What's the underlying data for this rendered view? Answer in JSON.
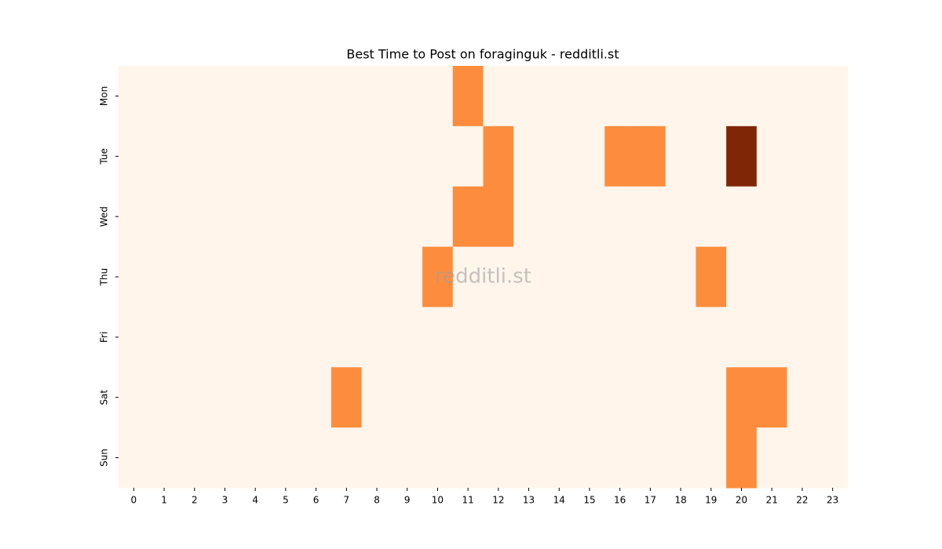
{
  "chart_data": {
    "type": "heatmap",
    "title": "Best Time to Post on foraginguk - redditli.st",
    "watermark": "redditli.st",
    "x": [
      0,
      1,
      2,
      3,
      4,
      5,
      6,
      7,
      8,
      9,
      10,
      11,
      12,
      13,
      14,
      15,
      16,
      17,
      18,
      19,
      20,
      21,
      22,
      23
    ],
    "y": [
      "Mon",
      "Tue",
      "Wed",
      "Thu",
      "Fri",
      "Sat",
      "Sun"
    ],
    "values": [
      [
        0,
        0,
        0,
        0,
        0,
        0,
        0,
        0,
        0,
        0,
        0,
        1,
        0,
        0,
        0,
        0,
        0,
        0,
        0,
        0,
        0,
        0,
        0,
        0
      ],
      [
        0,
        0,
        0,
        0,
        0,
        0,
        0,
        0,
        0,
        0,
        0,
        0,
        1,
        0,
        0,
        0,
        1,
        1,
        0,
        0,
        2,
        0,
        0,
        0
      ],
      [
        0,
        0,
        0,
        0,
        0,
        0,
        0,
        0,
        0,
        0,
        0,
        1,
        1,
        0,
        0,
        0,
        0,
        0,
        0,
        0,
        0,
        0,
        0,
        0
      ],
      [
        0,
        0,
        0,
        0,
        0,
        0,
        0,
        0,
        0,
        0,
        1,
        0,
        0,
        0,
        0,
        0,
        0,
        0,
        0,
        1,
        0,
        0,
        0,
        0
      ],
      [
        0,
        0,
        0,
        0,
        0,
        0,
        0,
        0,
        0,
        0,
        0,
        0,
        0,
        0,
        0,
        0,
        0,
        0,
        0,
        0,
        0,
        0,
        0,
        0
      ],
      [
        0,
        0,
        0,
        0,
        0,
        0,
        0,
        1,
        0,
        0,
        0,
        0,
        0,
        0,
        0,
        0,
        0,
        0,
        0,
        0,
        1,
        1,
        0,
        0
      ],
      [
        0,
        0,
        0,
        0,
        0,
        0,
        0,
        0,
        0,
        0,
        0,
        0,
        0,
        0,
        0,
        0,
        0,
        0,
        0,
        0,
        1,
        0,
        0,
        0
      ]
    ],
    "vlim": [
      0,
      2
    ],
    "colormap": [
      "#fff5eb",
      "#fd8d3c",
      "#7f2704"
    ]
  }
}
